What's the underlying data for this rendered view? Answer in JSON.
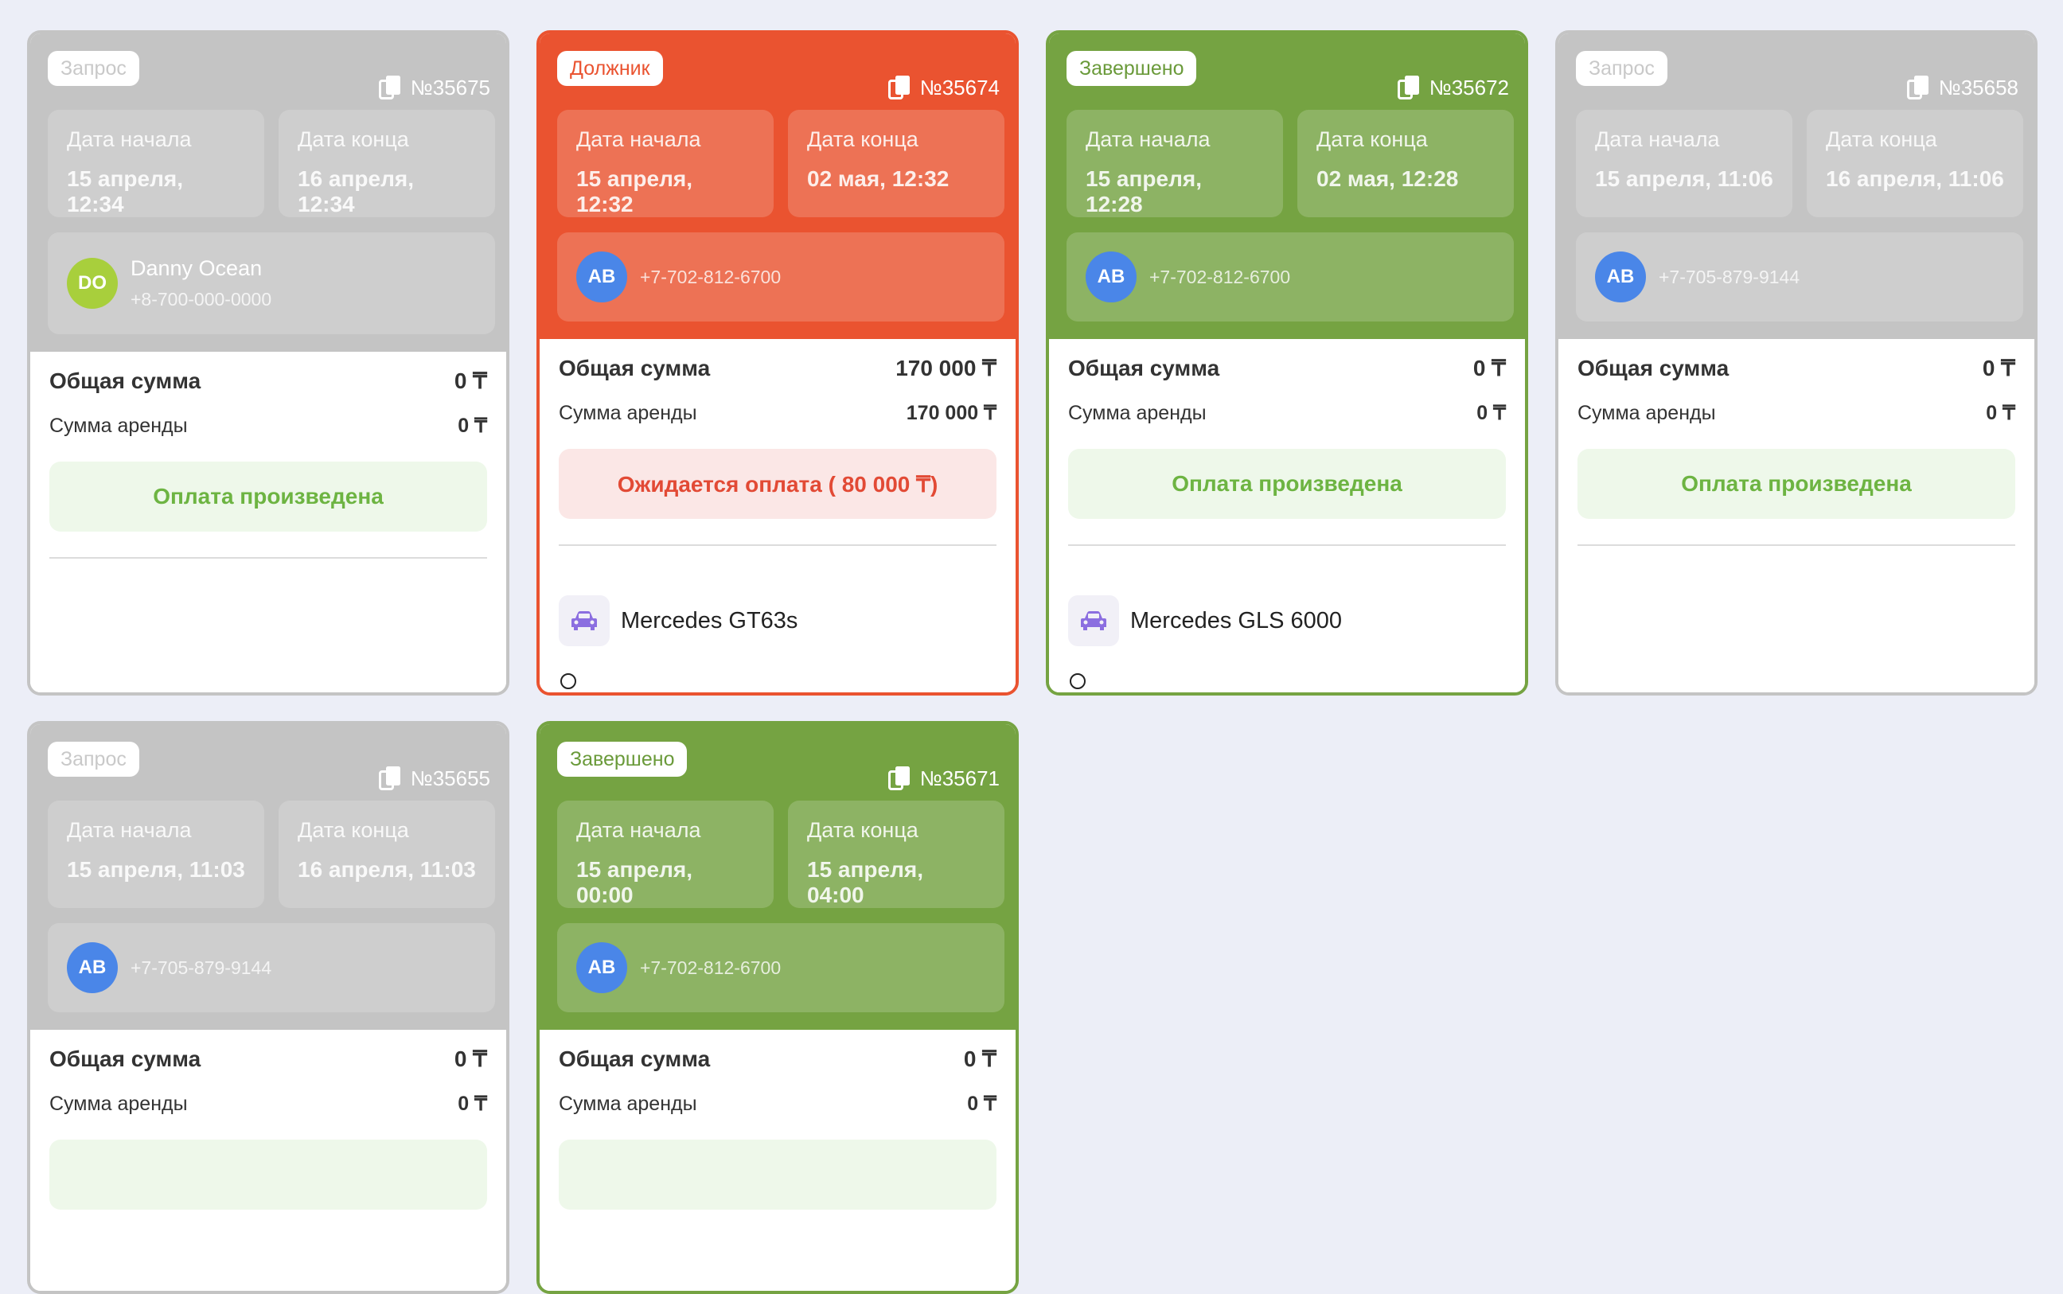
{
  "colors": {
    "background": "#eceef7",
    "request": "#c4c4c4",
    "debtor": "#ea5330",
    "completed": "#75a342",
    "avatar_ab": "#4a86e8",
    "avatar_do": "#a8cf3c"
  },
  "labels": {
    "date_start": "Дата начала",
    "date_end": "Дата конца",
    "total_sum": "Общая сумма",
    "rent_sum": "Сумма аренды"
  },
  "cards": [
    {
      "status": "Запрос",
      "status_type": "request",
      "number": "№35675",
      "start_date": "15 апреля, 12:34",
      "end_date": "16 апреля, 12:34",
      "client": {
        "initials": "DO",
        "name": "Danny Ocean",
        "phone": "+8-700-000-0000"
      },
      "total": "0 ₸",
      "rent": "0 ₸",
      "payment": "Оплата произведена",
      "payment_type": "paid",
      "car": null
    },
    {
      "status": "Должник",
      "status_type": "debtor",
      "number": "№35674",
      "start_date": "15 апреля, 12:32",
      "end_date": "02 мая, 12:32",
      "client": {
        "initials": "AB",
        "name": "",
        "phone": "+7-702-812-6700"
      },
      "total": "170 000 ₸",
      "rent": "170 000 ₸",
      "payment": "Ожидается оплата ( 80 000 ₸)",
      "payment_type": "pending",
      "car": {
        "icon": "car-icon",
        "name": "Mercedes GT63s"
      }
    },
    {
      "status": "Завершено",
      "status_type": "completed",
      "number": "№35672",
      "start_date": "15 апреля, 12:28",
      "end_date": "02 мая, 12:28",
      "client": {
        "initials": "AB",
        "name": "",
        "phone": "+7-702-812-6700"
      },
      "total": "0 ₸",
      "rent": "0 ₸",
      "payment": "Оплата произведена",
      "payment_type": "paid",
      "car": {
        "icon": "car-icon",
        "name": "Mercedes GLS 6000"
      }
    },
    {
      "status": "Запрос",
      "status_type": "request",
      "number": "№35658",
      "start_date": "15 апреля, 11:06",
      "end_date": "16 апреля, 11:06",
      "client": {
        "initials": "AB",
        "name": "",
        "phone": "+7-705-879-9144"
      },
      "total": "0 ₸",
      "rent": "0 ₸",
      "payment": "Оплата произведена",
      "payment_type": "paid",
      "car": null
    },
    {
      "status": "Запрос",
      "status_type": "request",
      "number": "№35655",
      "start_date": "15 апреля, 11:03",
      "end_date": "16 апреля, 11:03",
      "client": {
        "initials": "AB",
        "name": "",
        "phone": "+7-705-879-9144"
      },
      "total": "0 ₸",
      "rent": "0 ₸",
      "payment": "",
      "payment_type": "paid",
      "car": null
    },
    {
      "status": "Завершено",
      "status_type": "completed",
      "number": "№35671",
      "start_date": "15 апреля, 00:00",
      "end_date": "15 апреля, 04:00",
      "client": {
        "initials": "AB",
        "name": "",
        "phone": "+7-702-812-6700"
      },
      "total": "0 ₸",
      "rent": "0 ₸",
      "payment": "",
      "payment_type": "paid",
      "car": null
    }
  ]
}
